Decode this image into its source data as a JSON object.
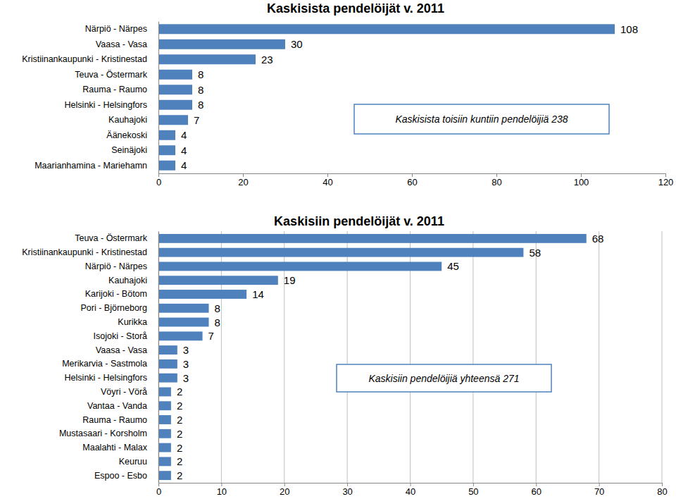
{
  "chart_data": [
    {
      "type": "bar",
      "orientation": "horizontal",
      "title": "Kaskisista pendelöijät v. 2011",
      "categories": [
        "Närpiö - Närpes",
        "Vaasa - Vasa",
        "Kristiinankaupunki - Kristinestad",
        "Teuva - Östermark",
        "Rauma - Raumo",
        "Helsinki - Helsingfors",
        "Kauhajoki",
        "Äänekoski",
        "Seinäjoki",
        "Maarianhamina - Mariehamn"
      ],
      "values": [
        108,
        30,
        23,
        8,
        8,
        8,
        7,
        4,
        4,
        4
      ],
      "color": "#4f81bd",
      "xlim": [
        0,
        120
      ],
      "xticks": [
        0,
        20,
        40,
        60,
        80,
        100,
        120
      ],
      "grid": false,
      "data_labels": true,
      "annotations": [
        "Kaskisista toisiin kuntiin pendelöijiä 238"
      ]
    },
    {
      "type": "bar",
      "orientation": "horizontal",
      "title": "Kaskisiin pendelöijät v. 2011",
      "categories": [
        "Teuva - Östermark",
        "Kristiinankaupunki - Kristinestad",
        "Närpiö - Närpes",
        "Kauhajoki",
        "Karijoki - Bötom",
        "Pori - Björneborg",
        "Kurikka",
        "Isojoki - Storå",
        "Vaasa - Vasa",
        "Merikarvia - Sastmola",
        "Helsinki - Helsingfors",
        "Vöyri - Vörå",
        "Vantaa - Vanda",
        "Rauma - Raumo",
        "Mustasaari - Korsholm",
        "Maalahti - Malax",
        "Keuruu",
        "Espoo - Esbo"
      ],
      "values": [
        68,
        58,
        45,
        19,
        14,
        8,
        8,
        7,
        3,
        3,
        3,
        2,
        2,
        2,
        2,
        2,
        2,
        2
      ],
      "color": "#4f81bd",
      "xlim": [
        0,
        80
      ],
      "xticks": [
        0,
        10,
        20,
        30,
        40,
        50,
        60,
        70,
        80
      ],
      "grid": true,
      "data_labels": true,
      "annotations": [
        "Kaskisiin pendelöijiä yhteensä 271"
      ]
    }
  ]
}
